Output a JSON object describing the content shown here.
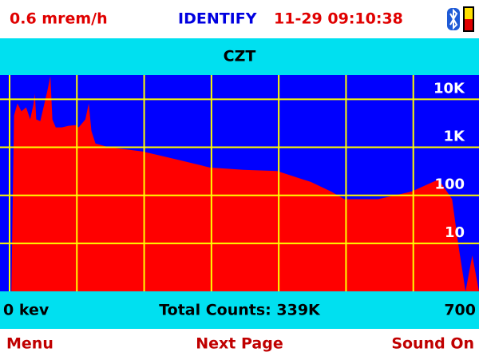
{
  "header": {
    "dose": "0.6 mrem/h",
    "mode": "IDENTIFY",
    "datetime": "11-29 09:10:38"
  },
  "chart_data": {
    "type": "area",
    "title": "CZT",
    "x": [
      5,
      9,
      14,
      20,
      27,
      33,
      38,
      40,
      42,
      48,
      58,
      63,
      66,
      71,
      80,
      90,
      100,
      105,
      115,
      120,
      124,
      130,
      150,
      200,
      250,
      300,
      350,
      400,
      450,
      480,
      500,
      550,
      600,
      640,
      660,
      670,
      680,
      690,
      700
    ],
    "values": [
      1,
      4600,
      8200,
      5600,
      6800,
      3800,
      8000,
      13000,
      3800,
      3500,
      14000,
      30000,
      3800,
      2600,
      2600,
      2800,
      2900,
      2600,
      3800,
      8200,
      2200,
      1200,
      1000,
      820,
      560,
      380,
      340,
      320,
      190,
      120,
      83,
      83,
      120,
      215,
      83,
      8,
      1,
      5.6,
      1
    ],
    "color": "#ff0000",
    "background": "#0000ff",
    "grid_color": "#ffff00",
    "xlim": [
      0,
      700
    ],
    "xgrid": [
      0,
      100,
      200,
      300,
      400,
      500,
      600
    ],
    "xticks": [
      {
        "value": 0,
        "label": "0 kev"
      },
      700
    ],
    "ylim": [
      1,
      32000
    ],
    "log_y": true,
    "yticks": [
      10,
      100,
      {
        "value": 1000,
        "label": "1K"
      },
      {
        "value": 10000,
        "label": "10K"
      }
    ],
    "total_counts": "Total Counts: 339K"
  },
  "softkeys": [
    "Menu",
    "Next Page",
    "Sound On"
  ]
}
